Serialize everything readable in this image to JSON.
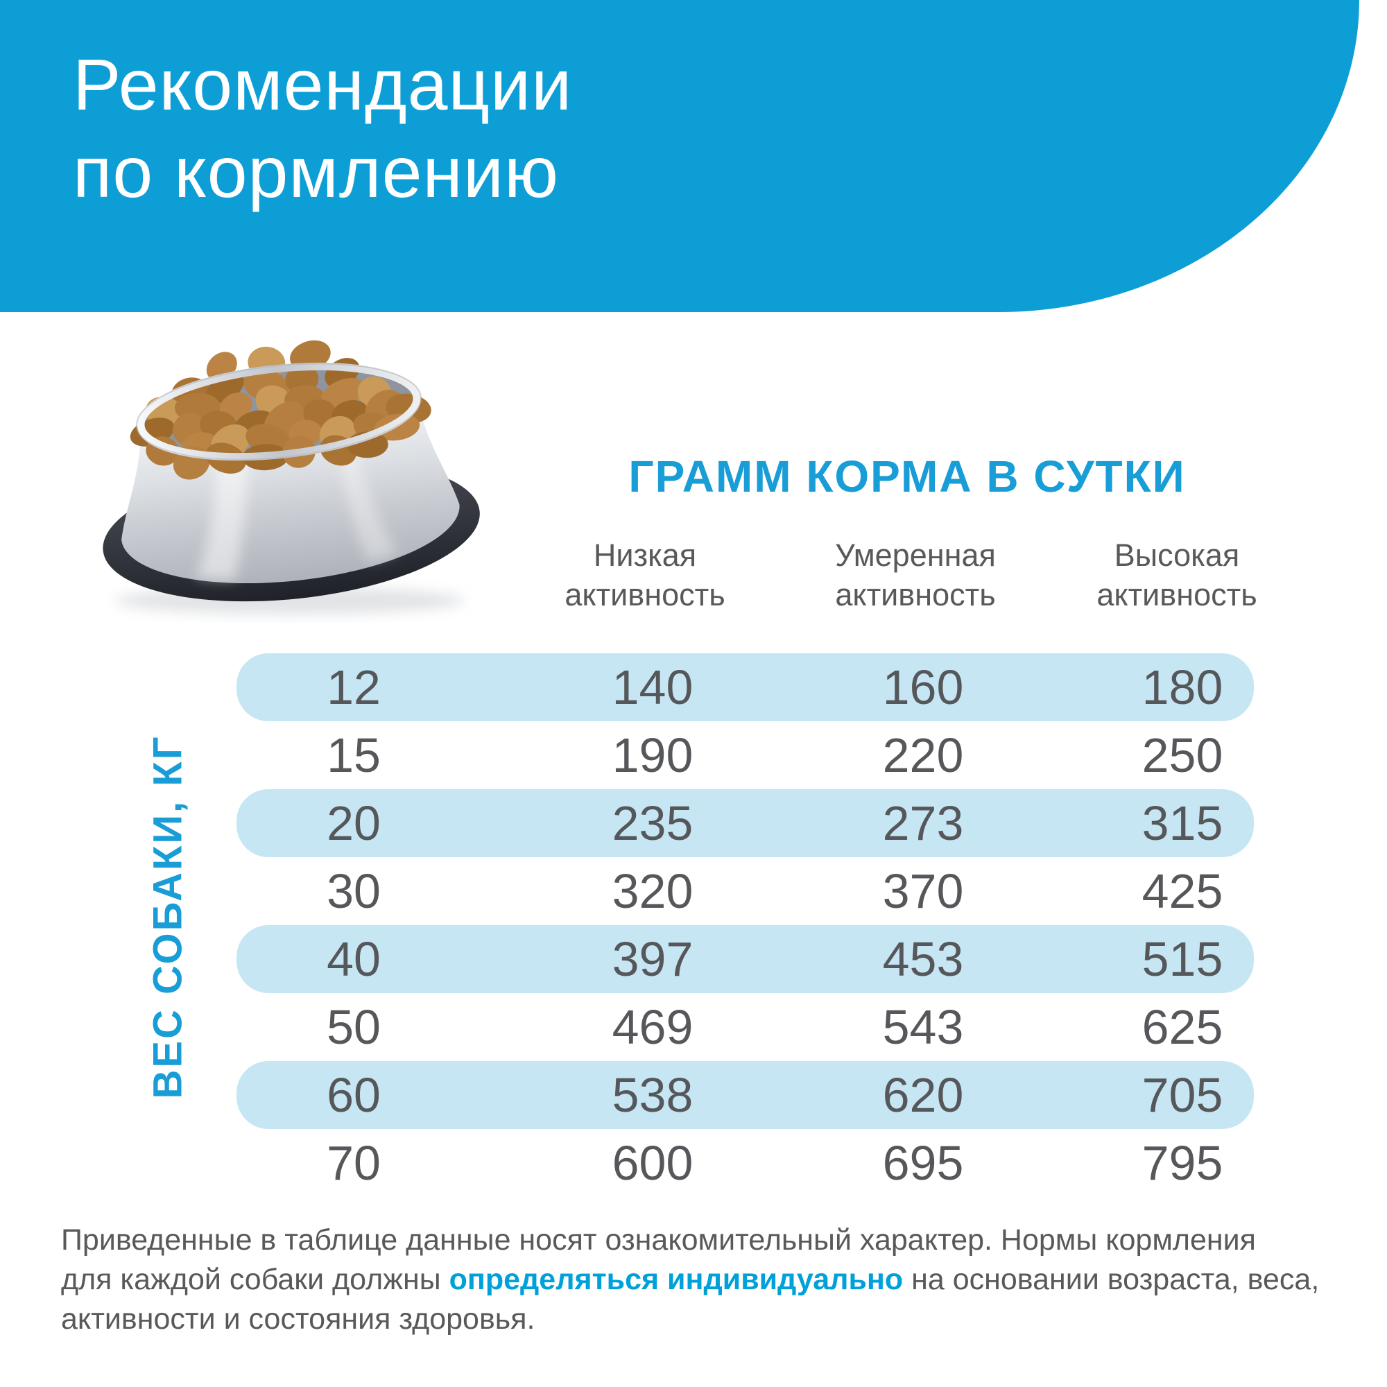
{
  "header": {
    "title_line1": "Рекомендации",
    "title_line2": "по кормлению"
  },
  "chart_data": {
    "type": "table",
    "title": "ГРАММ КОРМА В СУТКИ",
    "row_axis_label": "ВЕС СОБАКИ, КГ",
    "categories": [
      12,
      15,
      20,
      30,
      40,
      50,
      60,
      70
    ],
    "series": [
      {
        "name": "Низкая активность",
        "values": [
          140,
          190,
          235,
          320,
          397,
          469,
          538,
          600
        ]
      },
      {
        "name": "Умеренная активность",
        "values": [
          160,
          220,
          273,
          370,
          453,
          543,
          620,
          695
        ]
      },
      {
        "name": "Высокая активность",
        "values": [
          180,
          250,
          315,
          425,
          515,
          625,
          705,
          795
        ]
      }
    ],
    "highlighted_rows": [
      0,
      2,
      4,
      6
    ],
    "layout": {
      "grid": false,
      "header_position": "top",
      "row_label_position": "left"
    }
  },
  "disclaimer": {
    "line1": "Приведенные в таблице данные носят ознакомительный характер. Нормы кормления",
    "line2_pre": "для каждой собаки должны ",
    "line2_highlight": "определяться индивидуально",
    "line2_post": " на основании возраста, веса,",
    "line3": "активности и состояния здоровья."
  },
  "colors": {
    "banner_blue": "#0d9ed6",
    "accent_blue": "#189dd6",
    "highlight_blue": "#00a1d9",
    "pill_blue": "#c7e6f4",
    "text_gray": "#58595b"
  }
}
